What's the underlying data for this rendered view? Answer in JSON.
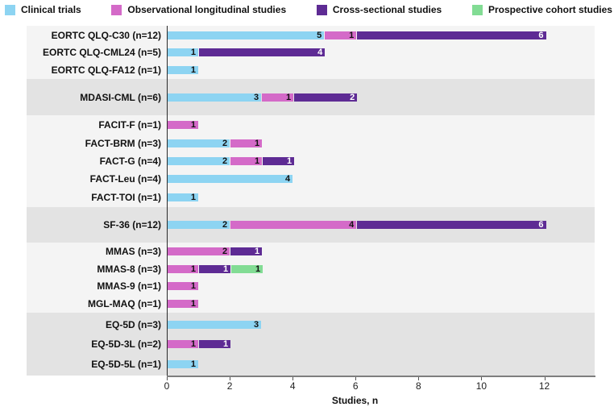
{
  "legend": {
    "items": [
      {
        "label": "Clinical trials",
        "color": "#8DD4F2"
      },
      {
        "label": "Observational longitudinal studies",
        "color": "#D46AC8"
      },
      {
        "label": "Cross-sectional studies",
        "color": "#5E2B94"
      },
      {
        "label": "Prospective cohort studies",
        "color": "#82DC94"
      }
    ]
  },
  "chart_data": {
    "type": "bar",
    "orientation": "horizontal",
    "stacked": true,
    "xlabel": "Studies, n",
    "xlim": [
      0,
      13.6
    ],
    "x_ticks": [
      0,
      2,
      4,
      6,
      8,
      10,
      12
    ],
    "grid": false,
    "legend_position": "top",
    "series_names": [
      "Clinical trials",
      "Observational longitudinal studies",
      "Cross-sectional studies",
      "Prospective cohort studies"
    ],
    "series_colors": [
      "#8DD4F2",
      "#D46AC8",
      "#5E2B94",
      "#82DC94"
    ],
    "series_label_text_colors": [
      "#111111",
      "#111111",
      "#ffffff",
      "#111111"
    ],
    "groups": [
      {
        "rows": [
          {
            "label": "EORTC QLQ-C30 (n=12)",
            "segments": [
              {
                "series": 0,
                "value": 5
              },
              {
                "series": 1,
                "value": 1
              },
              {
                "series": 2,
                "value": 6
              }
            ]
          },
          {
            "label": "EORTC QLQ-CML24 (n=5)",
            "segments": [
              {
                "series": 0,
                "value": 1
              },
              {
                "series": 2,
                "value": 4
              }
            ]
          },
          {
            "label": "EORTC QLQ-FA12 (n=1)",
            "segments": [
              {
                "series": 0,
                "value": 1
              }
            ]
          }
        ]
      },
      {
        "rows": [
          {
            "label": "MDASI-CML (n=6)",
            "segments": [
              {
                "series": 0,
                "value": 3
              },
              {
                "series": 1,
                "value": 1
              },
              {
                "series": 2,
                "value": 2
              }
            ]
          }
        ]
      },
      {
        "rows": [
          {
            "label": "FACIT-F (n=1)",
            "segments": [
              {
                "series": 1,
                "value": 1
              }
            ]
          },
          {
            "label": "FACT-BRM (n=3)",
            "segments": [
              {
                "series": 0,
                "value": 2
              },
              {
                "series": 1,
                "value": 1
              }
            ]
          },
          {
            "label": "FACT-G (n=4)",
            "segments": [
              {
                "series": 0,
                "value": 2
              },
              {
                "series": 1,
                "value": 1
              },
              {
                "series": 2,
                "value": 1
              }
            ]
          },
          {
            "label": "FACT-Leu (n=4)",
            "segments": [
              {
                "series": 0,
                "value": 4
              }
            ]
          },
          {
            "label": "FACT-TOI (n=1)",
            "segments": [
              {
                "series": 0,
                "value": 1
              }
            ]
          }
        ]
      },
      {
        "rows": [
          {
            "label": "SF-36 (n=12)",
            "segments": [
              {
                "series": 0,
                "value": 2
              },
              {
                "series": 1,
                "value": 4
              },
              {
                "series": 2,
                "value": 6
              }
            ]
          }
        ]
      },
      {
        "rows": [
          {
            "label": "MMAS (n=3)",
            "segments": [
              {
                "series": 1,
                "value": 2
              },
              {
                "series": 2,
                "value": 1
              }
            ]
          },
          {
            "label": "MMAS-8 (n=3)",
            "segments": [
              {
                "series": 1,
                "value": 1
              },
              {
                "series": 2,
                "value": 1
              },
              {
                "series": 3,
                "value": 1
              }
            ]
          },
          {
            "label": "MMAS-9 (n=1)",
            "segments": [
              {
                "series": 1,
                "value": 1
              }
            ]
          },
          {
            "label": "MGL-MAQ (n=1)",
            "segments": [
              {
                "series": 1,
                "value": 1
              }
            ]
          }
        ]
      },
      {
        "rows": [
          {
            "label": "EQ-5D (n=3)",
            "segments": [
              {
                "series": 0,
                "value": 3
              }
            ]
          },
          {
            "label": "EQ-5D-3L (n=2)",
            "segments": [
              {
                "series": 1,
                "value": 1
              },
              {
                "series": 2,
                "value": 1
              }
            ]
          },
          {
            "label": "EQ-5D-5L (n=1)",
            "segments": [
              {
                "series": 0,
                "value": 1
              }
            ]
          }
        ]
      }
    ]
  }
}
